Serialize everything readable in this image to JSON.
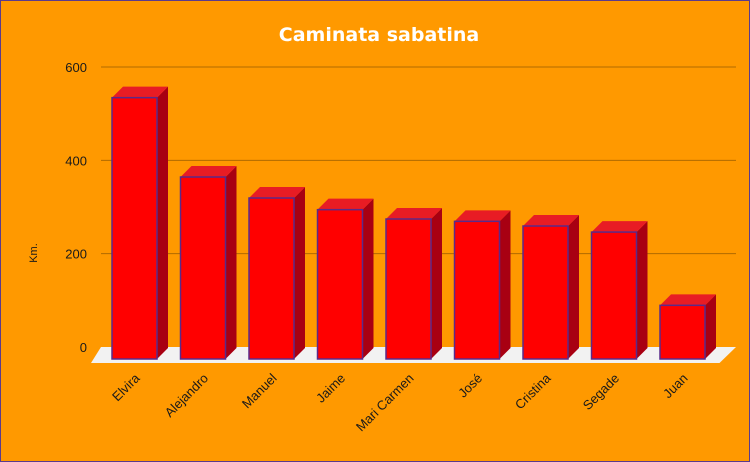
{
  "chart_data": {
    "type": "bar",
    "title": "Caminata sabatina",
    "xlabel": "",
    "ylabel": "Km.",
    "categories": [
      "Elvira",
      "Alejandro",
      "Manuel",
      "Jaime",
      "Mari Carmen",
      "José",
      "Cristina",
      "Segade",
      "Juan"
    ],
    "values": [
      560,
      390,
      345,
      320,
      300,
      295,
      285,
      272,
      115
    ],
    "ylim": [
      0,
      600
    ],
    "yticks": [
      0,
      200,
      400,
      600
    ],
    "grid": true,
    "legend": "none",
    "style": "3d-column"
  },
  "colors": {
    "background": "#ff9900",
    "bar_front": "#ff0000",
    "bar_top": "#e81c24",
    "bar_side": "#a80012",
    "bar_outline": "#5a2a8a",
    "floor": "#f2f2f2",
    "gridline": "#b06a00"
  }
}
